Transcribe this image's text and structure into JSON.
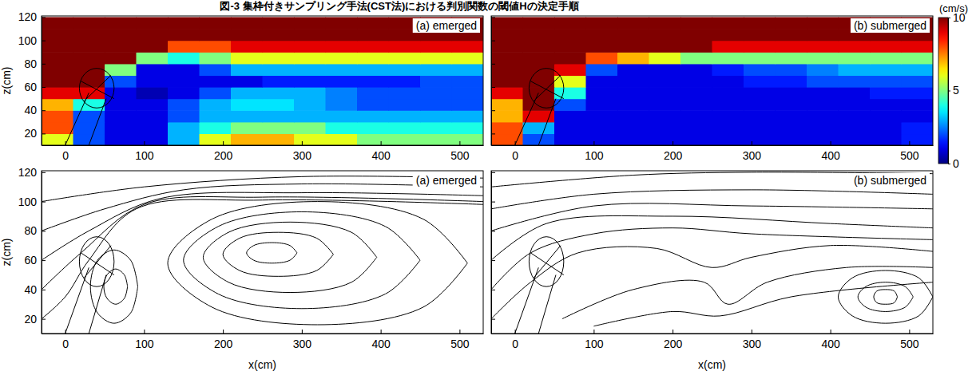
{
  "caption": "図-3 集枠付きサンプリング手法(CST法)における判別関数の閾値Hの決定手順",
  "chart_data": [
    {
      "type": "heatmap",
      "title": "(a) emerged",
      "ylabel": "z(cm)",
      "xlim": [
        -30,
        530
      ],
      "xticks": [
        0,
        100,
        200,
        300,
        400,
        500
      ],
      "ylim": [
        10,
        121
      ],
      "yticks": [
        20,
        40,
        60,
        80,
        100,
        120
      ],
      "x": [
        -10,
        30,
        70,
        110,
        150,
        190,
        230,
        270,
        310,
        350,
        390,
        430,
        470,
        510
      ],
      "y": [
        15,
        25,
        35,
        45,
        55,
        65,
        75,
        85,
        95,
        105,
        115
      ],
      "values": [
        [
          6,
          2,
          1,
          1,
          3,
          6,
          7,
          7,
          6,
          6,
          5,
          5,
          5,
          5
        ],
        [
          8,
          2,
          1,
          1,
          3,
          4,
          5,
          5,
          5,
          4,
          4,
          4,
          4,
          4
        ],
        [
          8,
          2,
          1,
          1,
          2,
          3,
          3,
          3,
          3,
          3,
          3,
          3,
          3,
          3
        ],
        [
          7,
          4,
          1,
          1,
          2,
          3,
          3.5,
          3.5,
          3,
          2.5,
          2,
          2,
          2,
          2
        ],
        [
          9,
          9,
          1,
          0.5,
          1,
          2,
          3,
          3,
          3,
          2.5,
          2,
          2,
          2,
          2
        ],
        [
          10,
          10,
          2,
          1,
          1,
          1,
          1,
          1.5,
          1.5,
          1.5,
          1.5,
          1.5,
          2,
          2
        ],
        [
          10,
          10,
          5,
          1,
          1,
          2,
          3,
          3,
          3,
          3,
          3,
          3,
          3,
          3
        ],
        [
          10,
          10,
          10,
          5,
          4,
          5,
          6,
          6,
          6,
          6,
          6,
          6,
          6,
          6
        ],
        [
          10,
          10,
          10,
          10,
          8,
          8,
          9,
          9,
          9,
          9,
          9,
          9,
          9,
          9
        ],
        [
          10,
          10,
          10,
          10,
          10,
          10,
          10,
          10,
          10,
          10,
          10,
          10,
          10,
          10
        ],
        [
          10,
          10,
          10,
          10,
          10,
          10,
          10,
          10,
          10,
          10,
          10,
          10,
          10,
          10
        ]
      ]
    },
    {
      "type": "heatmap",
      "title": "(b) submerged",
      "tick_labels": "x",
      "xlim": [
        -30,
        530
      ],
      "xticks": [
        0,
        100,
        200,
        300,
        400,
        500
      ],
      "ylim": [
        10,
        121
      ],
      "yticks": [
        20,
        40,
        60,
        80,
        100,
        120
      ],
      "x": [
        -10,
        30,
        70,
        110,
        150,
        190,
        230,
        270,
        310,
        350,
        390,
        430,
        470,
        510
      ],
      "y": [
        15,
        25,
        35,
        45,
        55,
        65,
        75,
        85,
        95,
        105,
        115
      ],
      "values": [
        [
          8,
          2,
          1,
          1,
          1,
          1,
          1,
          1,
          1,
          1,
          1,
          1,
          1,
          1.5
        ],
        [
          8,
          3,
          1,
          1,
          1,
          1,
          1,
          1,
          1,
          1,
          1,
          1,
          1,
          1.5
        ],
        [
          7,
          9,
          1,
          1,
          1,
          1,
          1,
          1,
          1,
          1,
          1,
          1,
          1,
          1
        ],
        [
          7,
          10,
          2,
          1,
          1,
          1,
          1,
          1,
          1,
          1,
          1,
          1,
          1,
          1
        ],
        [
          9,
          10,
          4,
          1,
          1,
          1,
          1,
          1,
          1,
          1,
          1,
          1,
          1.5,
          1.5
        ],
        [
          10,
          10,
          6,
          1,
          1,
          1,
          1,
          1,
          1.5,
          1.5,
          2,
          2,
          2,
          2
        ],
        [
          10,
          10,
          9,
          2,
          1,
          1,
          1,
          1.5,
          2,
          2,
          2.5,
          3,
          3,
          3
        ],
        [
          10,
          10,
          10,
          8,
          7,
          6,
          5,
          5,
          5,
          5,
          5,
          5,
          5,
          5
        ],
        [
          10,
          10,
          10,
          10,
          10,
          10,
          10,
          9,
          9,
          9,
          9,
          9,
          9,
          9
        ],
        [
          10,
          10,
          10,
          10,
          10,
          10,
          10,
          10,
          10,
          10,
          10,
          10,
          10,
          10
        ],
        [
          10,
          10,
          10,
          10,
          10,
          10,
          10,
          10,
          10,
          10,
          10,
          10,
          10,
          10
        ]
      ],
      "colorbar": {
        "range": [
          0,
          10
        ],
        "ticks": [
          0,
          5,
          10
        ],
        "label": "(cm/s)"
      }
    },
    {
      "type": "streamline",
      "title": "(a) emerged",
      "ylabel": "z(cm)",
      "xlabel": "x(cm)",
      "color": "#000000",
      "xlim": [
        -30,
        530
      ],
      "xticks": [
        0,
        100,
        200,
        300,
        400,
        500
      ],
      "ylim": [
        10,
        121
      ],
      "yticks": [
        20,
        40,
        60,
        80,
        100,
        120
      ],
      "streamlines": [
        [
          [
            510,
            58
          ],
          [
            454,
            88
          ],
          [
            320,
            100
          ],
          [
            186,
            88
          ],
          [
            130,
            58
          ],
          [
            186,
            28
          ],
          [
            320,
            16
          ],
          [
            454,
            28
          ],
          [
            510,
            58
          ]
        ],
        [
          [
            450,
            60
          ],
          [
            406,
            83
          ],
          [
            300,
            93
          ],
          [
            194,
            83
          ],
          [
            150,
            60
          ],
          [
            194,
            37
          ],
          [
            300,
            27
          ],
          [
            406,
            37
          ],
          [
            450,
            60
          ]
        ],
        [
          [
            395,
            62
          ],
          [
            363,
            79
          ],
          [
            285,
            86
          ],
          [
            207,
            79
          ],
          [
            175,
            62
          ],
          [
            207,
            45
          ],
          [
            285,
            38
          ],
          [
            363,
            45
          ],
          [
            395,
            62
          ]
        ],
        [
          [
            340,
            64
          ],
          [
            319,
            75
          ],
          [
            270,
            79
          ],
          [
            221,
            75
          ],
          [
            200,
            64
          ],
          [
            221,
            53
          ],
          [
            270,
            49
          ],
          [
            319,
            53
          ],
          [
            340,
            64
          ]
        ],
        [
          [
            294,
            65
          ],
          [
            285,
            70
          ],
          [
            262,
            72
          ],
          [
            239,
            70
          ],
          [
            230,
            65
          ],
          [
            239,
            60
          ],
          [
            262,
            58
          ],
          [
            285,
            60
          ],
          [
            294,
            65
          ]
        ],
        [
          [
            92,
            42
          ],
          [
            83,
            60
          ],
          [
            62,
            67
          ],
          [
            41,
            60
          ],
          [
            32,
            42
          ],
          [
            41,
            24
          ],
          [
            62,
            17
          ],
          [
            83,
            24
          ],
          [
            92,
            42
          ]
        ],
        [
          [
            79,
            42
          ],
          [
            75,
            50
          ],
          [
            64,
            54
          ],
          [
            53,
            50
          ],
          [
            49,
            42
          ],
          [
            53,
            34
          ],
          [
            64,
            30
          ],
          [
            75,
            34
          ],
          [
            79,
            42
          ]
        ],
        [
          [
            -30,
            100
          ],
          [
            100,
            110
          ],
          [
            300,
            117
          ],
          [
            530,
            116
          ]
        ],
        [
          [
            -30,
            80
          ],
          [
            50,
            95
          ],
          [
            150,
            108
          ],
          [
            300,
            112
          ],
          [
            530,
            110
          ]
        ],
        [
          [
            -30,
            60
          ],
          [
            30,
            80
          ],
          [
            120,
            102
          ],
          [
            300,
            106
          ],
          [
            530,
            104
          ]
        ],
        [
          [
            -30,
            40
          ],
          [
            20,
            65
          ],
          [
            100,
            98
          ],
          [
            250,
            103
          ],
          [
            530,
            100
          ]
        ],
        [
          [
            -30,
            20
          ],
          [
            0,
            35
          ],
          [
            30,
            60
          ],
          [
            90,
            95
          ],
          [
            250,
            101
          ],
          [
            530,
            98
          ]
        ]
      ]
    },
    {
      "type": "streamline",
      "title": "(b) submerged",
      "xlabel": "x(cm)",
      "tick_labels": "x",
      "color": "#000000",
      "xlim": [
        -30,
        530
      ],
      "xticks": [
        0,
        100,
        200,
        300,
        400,
        500
      ],
      "ylim": [
        10,
        121
      ],
      "yticks": [
        20,
        40,
        60,
        80,
        100,
        120
      ],
      "streamlines": [
        [
          [
            -30,
            110
          ],
          [
            150,
            118
          ],
          [
            300,
            120
          ],
          [
            530,
            119
          ]
        ],
        [
          [
            -30,
            95
          ],
          [
            100,
            105
          ],
          [
            300,
            108
          ],
          [
            530,
            105
          ]
        ],
        [
          [
            -30,
            80
          ],
          [
            100,
            97
          ],
          [
            300,
            97
          ],
          [
            530,
            95
          ]
        ],
        [
          [
            -30,
            60
          ],
          [
            40,
            85
          ],
          [
            200,
            90
          ],
          [
            400,
            85
          ],
          [
            530,
            82
          ]
        ],
        [
          [
            -30,
            40
          ],
          [
            20,
            65
          ],
          [
            100,
            78
          ],
          [
            200,
            82
          ],
          [
            300,
            78
          ],
          [
            530,
            74
          ]
        ],
        [
          [
            -30,
            20
          ],
          [
            20,
            45
          ],
          [
            80,
            65
          ],
          [
            180,
            68
          ],
          [
            250,
            55
          ],
          [
            300,
            62
          ],
          [
            400,
            70
          ],
          [
            530,
            66
          ]
        ],
        [
          [
            60,
            20
          ],
          [
            150,
            40
          ],
          [
            240,
            45
          ],
          [
            270,
            30
          ],
          [
            320,
            45
          ],
          [
            420,
            55
          ],
          [
            530,
            55
          ]
        ],
        [
          [
            100,
            15
          ],
          [
            200,
            25
          ],
          [
            260,
            22
          ],
          [
            350,
            35
          ],
          [
            530,
            45
          ]
        ],
        [
          [
            530,
            35
          ],
          [
            512,
            48
          ],
          [
            470,
            53
          ],
          [
            428,
            48
          ],
          [
            410,
            35
          ],
          [
            428,
            22
          ],
          [
            470,
            17
          ],
          [
            512,
            22
          ],
          [
            530,
            35
          ]
        ],
        [
          [
            505,
            35
          ],
          [
            495,
            42
          ],
          [
            470,
            45
          ],
          [
            445,
            42
          ],
          [
            435,
            35
          ],
          [
            445,
            28
          ],
          [
            470,
            25
          ],
          [
            495,
            28
          ],
          [
            505,
            35
          ]
        ],
        [
          [
            485,
            35
          ],
          [
            481,
            39
          ],
          [
            470,
            40
          ],
          [
            459,
            39
          ],
          [
            455,
            35
          ],
          [
            459,
            31
          ],
          [
            470,
            30
          ],
          [
            481,
            31
          ],
          [
            485,
            35
          ]
        ]
      ]
    }
  ]
}
